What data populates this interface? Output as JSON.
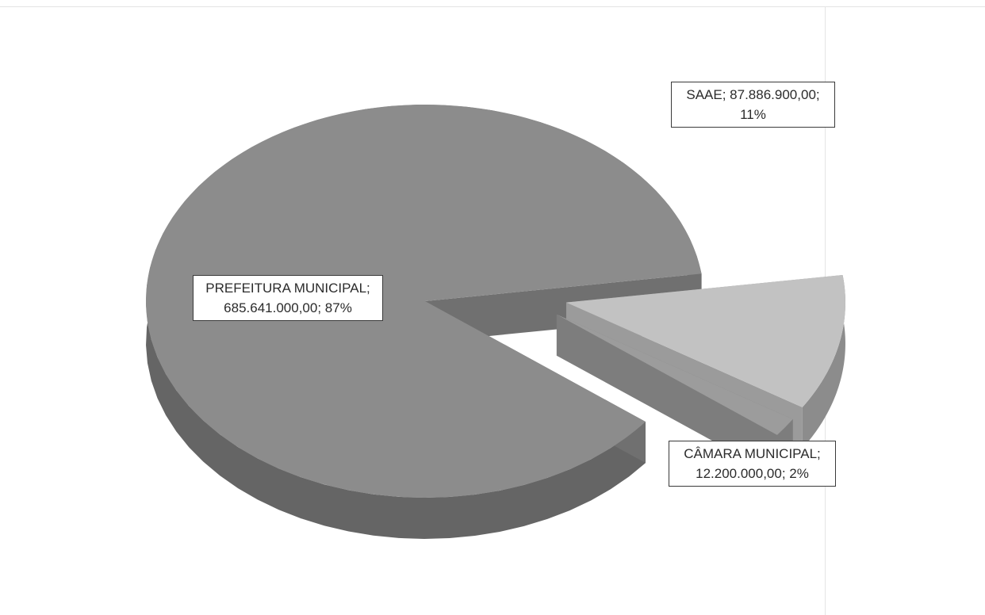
{
  "chart_data": {
    "type": "pie",
    "style": "3d-exploded",
    "series": [
      {
        "values": [
          685641000.0,
          87886900.0,
          12200000.0
        ],
        "categories": [
          "PREFEITURA MUNICIPAL",
          "SAAE",
          "CÂMARA MUNICIPAL"
        ],
        "percentages": [
          87,
          11,
          2
        ]
      }
    ],
    "colors": {
      "PREFEITURA MUNICIPAL": "#8c8c8c",
      "SAAE": "#c2c2c2",
      "CÂMARA MUNICIPAL": "#9c9c9c"
    },
    "legend": "none",
    "labels": [
      {
        "key": "prefeitura",
        "line1": "PREFEITURA MUNICIPAL;",
        "line2": "685.641.000,00; 87%"
      },
      {
        "key": "saae",
        "line1": "SAAE; 87.886.900,00;",
        "line2": "11%"
      },
      {
        "key": "camara",
        "line1": "CÂMARA MUNICIPAL;",
        "line2": "12.200.000,00; 2%"
      }
    ]
  }
}
